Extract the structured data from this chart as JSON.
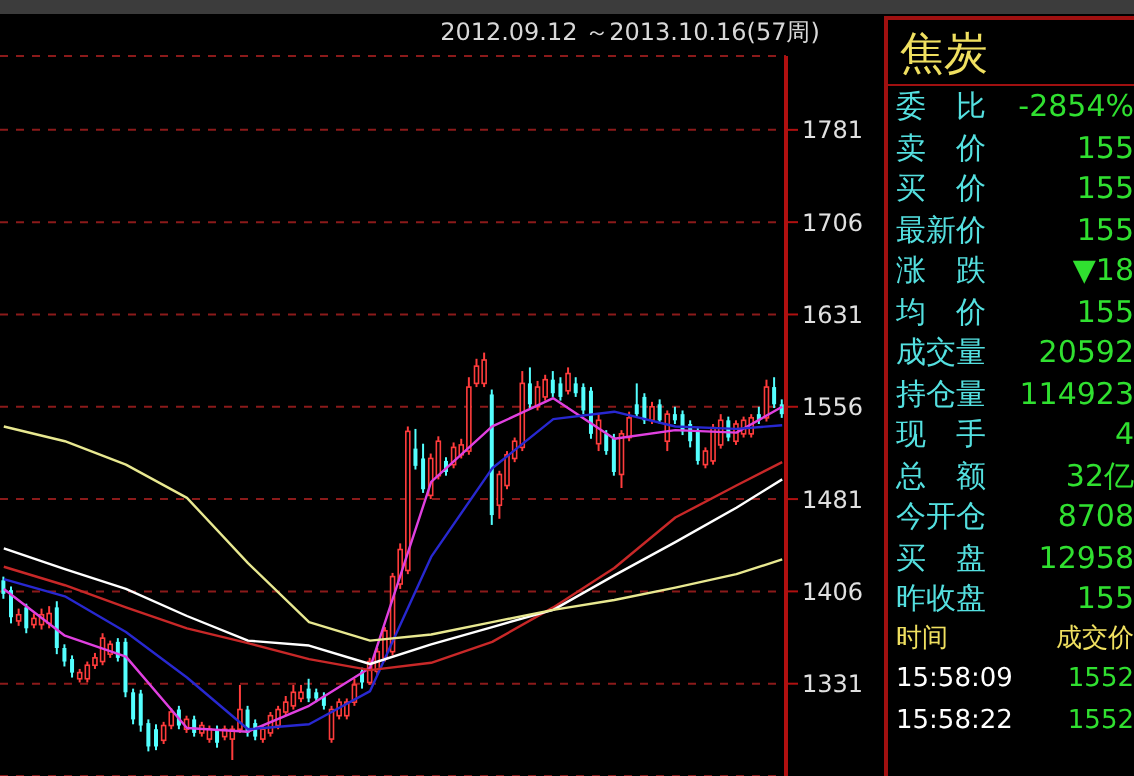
{
  "chart_data": {
    "type": "candlestick",
    "title": "焦炭",
    "subtitle": "2012.09.12 ～2013.10.16(57周)",
    "categories": [
      null,
      null,
      null,
      null,
      null,
      null,
      null,
      null,
      null,
      null,
      null,
      null,
      null,
      null,
      null,
      null,
      null,
      null,
      null,
      null,
      null,
      null,
      null,
      null,
      null,
      null,
      null,
      null,
      null,
      null,
      null,
      null,
      null,
      null,
      null,
      null,
      null,
      null,
      null,
      null,
      null,
      null,
      null,
      null,
      null,
      null,
      null,
      null,
      null,
      null,
      null,
      null,
      null,
      null,
      null,
      null,
      null,
      null,
      null,
      null,
      null,
      null,
      null,
      null,
      null,
      null,
      null,
      null,
      null,
      null,
      null,
      null,
      null,
      null,
      null,
      null,
      null,
      null,
      null,
      null,
      null,
      null,
      null,
      null,
      null,
      null,
      null,
      null,
      null,
      null,
      null,
      null,
      null,
      null,
      null,
      null,
      null,
      null,
      null,
      null,
      null,
      null,
      null
    ],
    "ohlc": [
      [
        1415,
        1418,
        1400,
        1404
      ],
      [
        1407,
        1410,
        1380,
        1385
      ],
      [
        1382,
        1392,
        1378,
        1387
      ],
      [
        1393,
        1396,
        1372,
        1376
      ],
      [
        1379,
        1388,
        1376,
        1384
      ],
      [
        1379,
        1392,
        1375,
        1387
      ],
      [
        1380,
        1394,
        1376,
        1388
      ],
      [
        1393,
        1398,
        1355,
        1360
      ],
      [
        1360,
        1363,
        1345,
        1349
      ],
      [
        1351,
        1354,
        1336,
        1340
      ],
      [
        1335,
        1343,
        1332,
        1340
      ],
      [
        1335,
        1349,
        1332,
        1346
      ],
      [
        1346,
        1356,
        1343,
        1352
      ],
      [
        1349,
        1372,
        1346,
        1368
      ],
      [
        1355,
        1366,
        1352,
        1363
      ],
      [
        1365,
        1368,
        1349,
        1352
      ],
      [
        1365,
        1368,
        1320,
        1324
      ],
      [
        1324,
        1327,
        1298,
        1302
      ],
      [
        1323,
        1326,
        1292,
        1297
      ],
      [
        1299,
        1302,
        1276,
        1280
      ],
      [
        1294,
        1298,
        1277,
        1280
      ],
      [
        1285,
        1300,
        1282,
        1297
      ],
      [
        1297,
        1311,
        1294,
        1308
      ],
      [
        1310,
        1313,
        1294,
        1297
      ],
      [
        1294,
        1305,
        1291,
        1302
      ],
      [
        1302,
        1305,
        1288,
        1291
      ],
      [
        1291,
        1300,
        1288,
        1297
      ],
      [
        1286,
        1297,
        1283,
        1294
      ],
      [
        1294,
        1297,
        1279,
        1283
      ],
      [
        1288,
        1297,
        1285,
        1294
      ],
      [
        1286,
        1297,
        1269,
        1294
      ],
      [
        1294,
        1330,
        1291,
        1310
      ],
      [
        1310,
        1313,
        1288,
        1291
      ],
      [
        1299,
        1302,
        1285,
        1288
      ],
      [
        1286,
        1297,
        1283,
        1294
      ],
      [
        1291,
        1308,
        1288,
        1305
      ],
      [
        1297,
        1313,
        1294,
        1310
      ],
      [
        1308,
        1321,
        1305,
        1316
      ],
      [
        1313,
        1330,
        1310,
        1324
      ],
      [
        1319,
        1330,
        1316,
        1324
      ],
      [
        1327,
        1335,
        1316,
        1319
      ],
      [
        1324,
        1327,
        1316,
        1319
      ],
      [
        1321,
        1324,
        1310,
        1313
      ],
      [
        1286,
        1313,
        1283,
        1310
      ],
      [
        1305,
        1319,
        1302,
        1316
      ],
      [
        1305,
        1319,
        1302,
        1316
      ],
      [
        1316,
        1335,
        1313,
        1330
      ],
      [
        1341,
        1344,
        1327,
        1332
      ],
      [
        1332,
        1352,
        1330,
        1349
      ],
      [
        1341,
        1360,
        1338,
        1357
      ],
      [
        1352,
        1377,
        1349,
        1374
      ],
      [
        1357,
        1421,
        1354,
        1418
      ],
      [
        1412,
        1445,
        1408,
        1440
      ],
      [
        1423,
        1540,
        1420,
        1536
      ],
      [
        1522,
        1538,
        1505,
        1508
      ],
      [
        1514,
        1526,
        1486,
        1489
      ],
      [
        1484,
        1518,
        1481,
        1514
      ],
      [
        1500,
        1532,
        1497,
        1528
      ],
      [
        1512,
        1515,
        1500,
        1503
      ],
      [
        1509,
        1527,
        1506,
        1523
      ],
      [
        1517,
        1530,
        1514,
        1525
      ],
      [
        1520,
        1580,
        1517,
        1572
      ],
      [
        1575,
        1595,
        1572,
        1589
      ],
      [
        1575,
        1600,
        1572,
        1594
      ],
      [
        1566,
        1570,
        1460,
        1468
      ],
      [
        1476,
        1504,
        1465,
        1501
      ],
      [
        1492,
        1520,
        1489,
        1517
      ],
      [
        1514,
        1531,
        1511,
        1528
      ],
      [
        1523,
        1585,
        1520,
        1575
      ],
      [
        1575,
        1588,
        1555,
        1558
      ],
      [
        1556,
        1577,
        1553,
        1572
      ],
      [
        1564,
        1582,
        1561,
        1578
      ],
      [
        1578,
        1585,
        1564,
        1567
      ],
      [
        1575,
        1580,
        1561,
        1564
      ],
      [
        1569,
        1588,
        1566,
        1583
      ],
      [
        1575,
        1580,
        1564,
        1567
      ],
      [
        1572,
        1575,
        1550,
        1553
      ],
      [
        1569,
        1572,
        1530,
        1534
      ],
      [
        1526,
        1550,
        1520,
        1545
      ],
      [
        1534,
        1537,
        1517,
        1520
      ],
      [
        1531,
        1534,
        1500,
        1503
      ],
      [
        1501,
        1537,
        1490,
        1534
      ],
      [
        1531,
        1552,
        1528,
        1547
      ],
      [
        1558,
        1575,
        1547,
        1550
      ],
      [
        1564,
        1567,
        1542,
        1545
      ],
      [
        1545,
        1560,
        1542,
        1556
      ],
      [
        1558,
        1562,
        1542,
        1545
      ],
      [
        1528,
        1553,
        1520,
        1550
      ],
      [
        1550,
        1556,
        1542,
        1545
      ],
      [
        1550,
        1553,
        1533,
        1536
      ],
      [
        1542,
        1545,
        1523,
        1528
      ],
      [
        1536,
        1539,
        1509,
        1512
      ],
      [
        1509,
        1523,
        1506,
        1520
      ],
      [
        1512,
        1542,
        1509,
        1539
      ],
      [
        1525,
        1550,
        1522,
        1545
      ],
      [
        1545,
        1548,
        1528,
        1531
      ],
      [
        1528,
        1545,
        1525,
        1542
      ],
      [
        1534,
        1548,
        1531,
        1545
      ],
      [
        1534,
        1550,
        1531,
        1547
      ],
      [
        1550,
        1556,
        1542,
        1545
      ],
      [
        1547,
        1578,
        1544,
        1572
      ],
      [
        1572,
        1580,
        1555,
        1558
      ],
      [
        1558,
        1562,
        1547,
        1550
      ]
    ],
    "series": [
      {
        "type": "line",
        "color": "#e040e0",
        "values": [
          1408,
          null,
          null,
          null,
          null,
          null,
          null,
          null,
          1370,
          null,
          null,
          null,
          null,
          null,
          null,
          null,
          1353,
          null,
          null,
          null,
          null,
          null,
          null,
          null,
          1295,
          null,
          null,
          null,
          null,
          null,
          null,
          null,
          1292,
          null,
          null,
          null,
          null,
          null,
          null,
          null,
          1313,
          null,
          null,
          null,
          null,
          null,
          null,
          null,
          1344,
          null,
          null,
          null,
          null,
          null,
          null,
          null,
          1495,
          null,
          null,
          null,
          null,
          null,
          null,
          null,
          1540,
          null,
          null,
          null,
          null,
          null,
          null,
          null,
          1563,
          null,
          null,
          null,
          null,
          null,
          null,
          null,
          1530,
          null,
          null,
          null,
          null,
          null,
          null,
          null,
          1537,
          null,
          null,
          null,
          null,
          null,
          null,
          null,
          1535,
          null,
          null,
          null,
          null,
          null,
          1556
        ]
      },
      {
        "type": "line",
        "color": "#2828d0",
        "values": [
          1416,
          null,
          null,
          null,
          null,
          null,
          null,
          null,
          1402,
          null,
          null,
          null,
          null,
          null,
          null,
          null,
          1373,
          null,
          null,
          null,
          null,
          null,
          null,
          null,
          1336,
          null,
          null,
          null,
          null,
          null,
          null,
          null,
          1294,
          null,
          null,
          null,
          null,
          null,
          null,
          null,
          1298,
          null,
          null,
          null,
          null,
          null,
          null,
          null,
          1325,
          null,
          null,
          null,
          null,
          null,
          null,
          null,
          1434,
          null,
          null,
          null,
          null,
          null,
          null,
          null,
          1506,
          null,
          null,
          null,
          null,
          null,
          null,
          null,
          1546,
          null,
          null,
          null,
          null,
          null,
          null,
          null,
          1552,
          null,
          null,
          null,
          null,
          null,
          null,
          null,
          1540,
          null,
          null,
          null,
          null,
          null,
          null,
          null,
          1538,
          null,
          null,
          null,
          null,
          null,
          1541
        ]
      },
      {
        "type": "line",
        "color": "#c82828",
        "values": [
          1426,
          null,
          null,
          null,
          null,
          null,
          null,
          null,
          1411,
          null,
          null,
          null,
          null,
          null,
          null,
          null,
          1393,
          null,
          null,
          null,
          null,
          null,
          null,
          null,
          1376,
          null,
          null,
          null,
          null,
          null,
          null,
          null,
          1364,
          null,
          null,
          null,
          null,
          null,
          null,
          null,
          1351,
          null,
          null,
          null,
          null,
          null,
          null,
          null,
          1342,
          null,
          null,
          null,
          null,
          null,
          null,
          null,
          1348,
          null,
          null,
          null,
          null,
          null,
          null,
          null,
          1365,
          null,
          null,
          null,
          null,
          null,
          null,
          null,
          1393,
          null,
          null,
          null,
          null,
          null,
          null,
          null,
          1425,
          null,
          null,
          null,
          null,
          null,
          null,
          null,
          1466,
          null,
          null,
          null,
          null,
          null,
          null,
          null,
          1492,
          null,
          null,
          null,
          null,
          null,
          1511
        ]
      },
      {
        "type": "line",
        "color": "#ffffff",
        "values": [
          1441,
          null,
          null,
          null,
          null,
          null,
          null,
          null,
          1424,
          null,
          null,
          null,
          null,
          null,
          null,
          null,
          1408,
          null,
          null,
          null,
          null,
          null,
          null,
          null,
          1386,
          null,
          null,
          null,
          null,
          null,
          null,
          null,
          1366,
          null,
          null,
          null,
          null,
          null,
          null,
          null,
          1362,
          null,
          null,
          null,
          null,
          null,
          null,
          null,
          1347,
          null,
          null,
          null,
          null,
          null,
          null,
          null,
          1363,
          null,
          null,
          null,
          null,
          null,
          null,
          null,
          1377,
          null,
          null,
          null,
          null,
          null,
          null,
          null,
          1391,
          null,
          null,
          null,
          null,
          null,
          null,
          null,
          1419,
          null,
          null,
          null,
          null,
          null,
          null,
          null,
          1446,
          null,
          null,
          null,
          null,
          null,
          null,
          null,
          1474,
          null,
          null,
          null,
          null,
          null,
          1497
        ]
      },
      {
        "type": "line",
        "color": "#e8e890",
        "values": [
          1540,
          null,
          null,
          null,
          null,
          null,
          null,
          null,
          1528,
          null,
          null,
          null,
          null,
          null,
          null,
          null,
          1509,
          null,
          null,
          null,
          null,
          null,
          null,
          null,
          1482,
          null,
          null,
          null,
          null,
          null,
          null,
          null,
          1429,
          null,
          null,
          null,
          null,
          null,
          null,
          null,
          1381,
          null,
          null,
          null,
          null,
          null,
          null,
          null,
          1366,
          null,
          null,
          null,
          null,
          null,
          null,
          null,
          1371,
          null,
          null,
          null,
          null,
          null,
          null,
          null,
          1381,
          null,
          null,
          null,
          null,
          null,
          null,
          null,
          1391,
          null,
          null,
          null,
          null,
          null,
          null,
          null,
          1399,
          null,
          null,
          null,
          null,
          null,
          null,
          null,
          1409,
          null,
          null,
          null,
          null,
          null,
          null,
          null,
          1420,
          null,
          null,
          null,
          null,
          null,
          1432
        ]
      }
    ],
    "ylim": [
      1256,
      1841
    ],
    "yticks": [
      1331,
      1406,
      1481,
      1556,
      1631,
      1706,
      1781
    ],
    "grid": "y",
    "tick_labels": "y",
    "legend": false,
    "line_style": "solid",
    "marker": "none",
    "annotations": [
      "委　比",
      "-2854%",
      "卖　价",
      "155",
      "买　价",
      "155",
      "最新价",
      "155",
      "涨　跌",
      "▼18",
      "均　价",
      "155",
      "成交量",
      "20592",
      "持仓量",
      "114923",
      "现　手",
      "4",
      "总　额",
      "32亿",
      "今开仓",
      "8708",
      "买　盘",
      "12958",
      "昨收盘",
      "155",
      "时间",
      "成交价",
      "15:58:09",
      "1552",
      "15:58:22",
      "1552"
    ]
  }
}
